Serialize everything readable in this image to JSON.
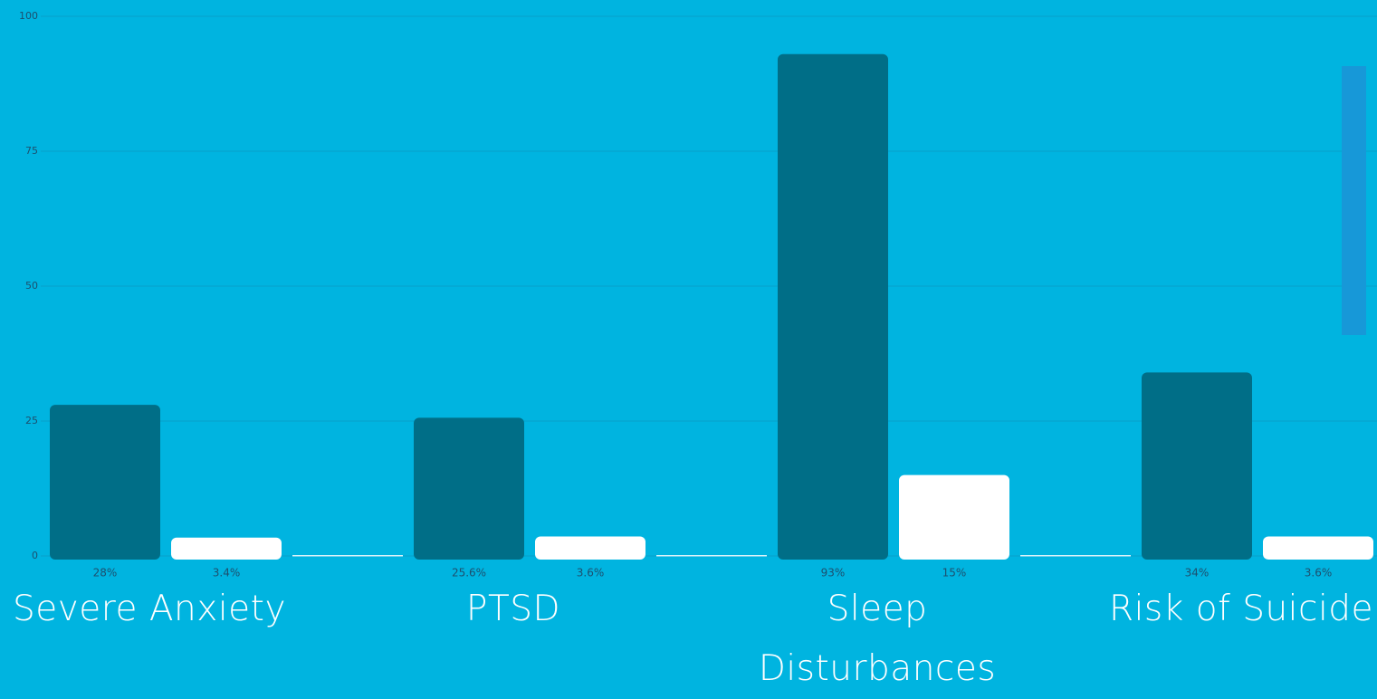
{
  "chart_data": {
    "type": "bar",
    "categories": [
      "Severe Anxiety",
      "PTSD",
      "Sleep Disturbances",
      "Risk of Suicide"
    ],
    "series": [
      {
        "color": "#006e87",
        "values": [
          28,
          25.6,
          93,
          34
        ],
        "value_labels": [
          "28%",
          "25.6%",
          "93%",
          "34%"
        ]
      },
      {
        "color": "#ffffff",
        "values": [
          3.4,
          3.6,
          15,
          3.6
        ],
        "value_labels": [
          "3.4%",
          "3.6%",
          "15%",
          "3.6%"
        ]
      },
      {
        "color": "#ffffff",
        "values": [
          0,
          0,
          0,
          0
        ]
      }
    ],
    "ylim": [
      0,
      100
    ],
    "yticks": [
      0,
      25,
      50,
      75,
      100
    ],
    "grid": true
  }
}
